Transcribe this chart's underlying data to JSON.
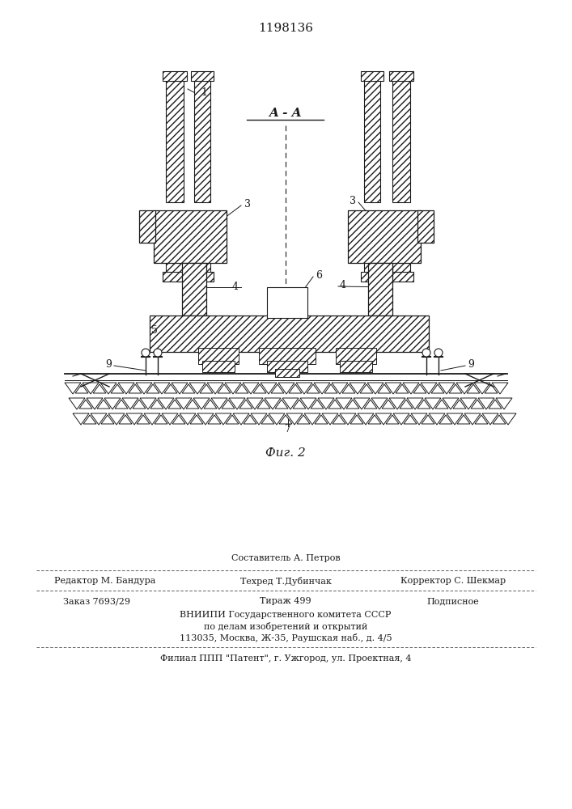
{
  "patent_number": "1198136",
  "figure_label": "Фиг. 2",
  "section_label": "A - A",
  "bg_color": "#ffffff",
  "line_color": "#1a1a1a",
  "footer_col1_line1": "",
  "footer_col2_line1": "Составитель А. Петров",
  "footer_col3_line1": "",
  "footer_col1_line2": "Редактор М. Бандура",
  "footer_col2_line2": "Техред Т.Дубинчак",
  "footer_col3_line2": "Корректор С. Шекмар",
  "footer_order": "Заказ 7693/29",
  "footer_tirazh": "Тираж 499",
  "footer_podp": "Подписное",
  "footer_vniip1": "ВНИИПИ Государственного комитета СССР",
  "footer_vniip2": "по делам изобретений и открытий",
  "footer_addr": "113035, Москва, Ж-35, Раушская наб., д. 4/5",
  "footer_filial": "Филиал ППП \"Патент\", г. Ужгород, ул. Проектная, 4"
}
